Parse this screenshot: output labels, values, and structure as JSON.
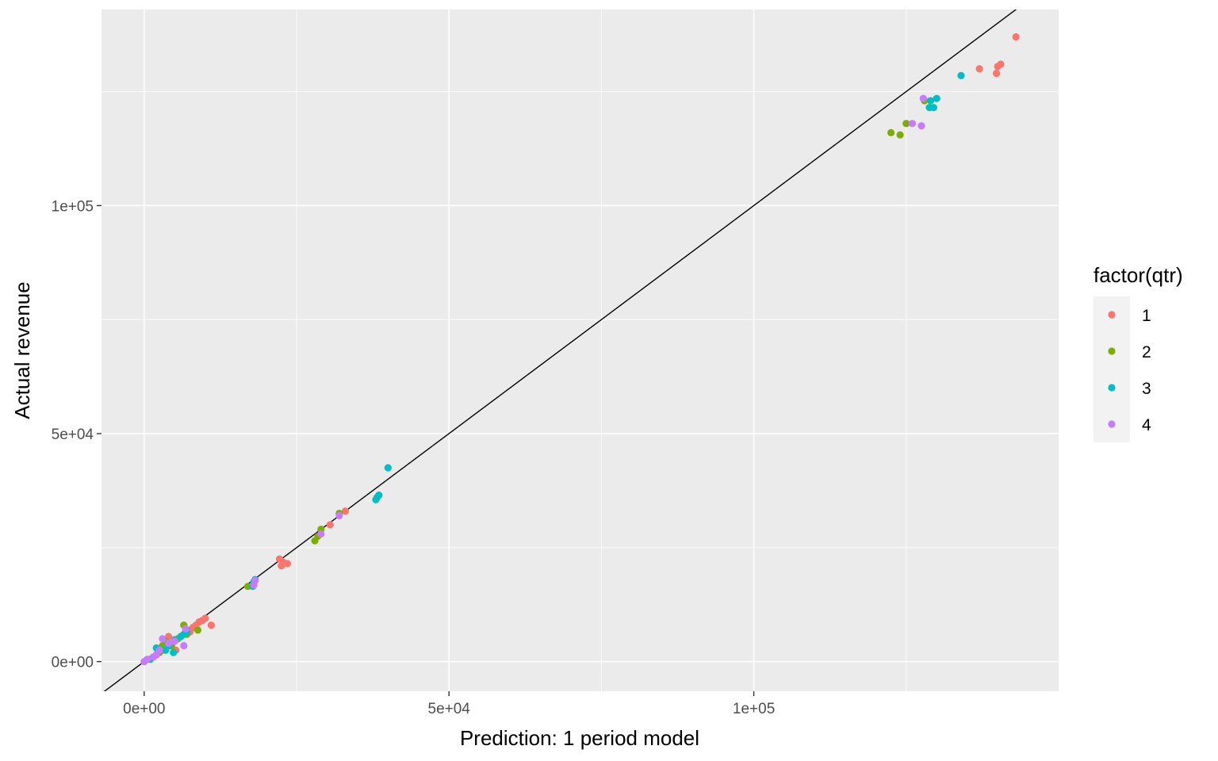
{
  "chart_data": {
    "type": "scatter",
    "title": "",
    "xlabel": "Prediction: 1 period model",
    "ylabel": "Actual revenue",
    "xlim": [
      -7000,
      150000
    ],
    "ylim": [
      -6500,
      143000
    ],
    "x_ticks": [
      {
        "value": 0,
        "label": "0e+00"
      },
      {
        "value": 50000,
        "label": "5e+04"
      },
      {
        "value": 100000,
        "label": "1e+05"
      }
    ],
    "y_ticks": [
      {
        "value": 0,
        "label": "0e+00"
      },
      {
        "value": 50000,
        "label": "5e+04"
      },
      {
        "value": 100000,
        "label": "1e+05"
      }
    ],
    "grid": true,
    "background": "#EBEBEB",
    "reference_line": {
      "intercept": 0,
      "slope": 1,
      "color": "#000000"
    },
    "legend": {
      "title": "factor(qtr)",
      "position": "right"
    },
    "series": [
      {
        "name": "1",
        "color": "#F8766D",
        "points": [
          [
            143000,
            137000
          ],
          [
            140500,
            131000
          ],
          [
            140000,
            130500
          ],
          [
            139800,
            129000
          ],
          [
            137000,
            130000
          ],
          [
            33000,
            33000
          ],
          [
            30500,
            30000
          ],
          [
            23500,
            21500
          ],
          [
            22800,
            21800
          ],
          [
            22500,
            21000
          ],
          [
            22200,
            22500
          ],
          [
            11000,
            8000
          ],
          [
            10000,
            9500
          ],
          [
            9500,
            9000
          ],
          [
            9000,
            8700
          ],
          [
            8500,
            8000
          ],
          [
            8000,
            7500
          ],
          [
            7500,
            6500
          ],
          [
            6000,
            5500
          ],
          [
            5500,
            5000
          ],
          [
            5000,
            4500
          ],
          [
            4500,
            4000
          ],
          [
            4000,
            3500
          ],
          [
            3500,
            3000
          ],
          [
            3000,
            2500
          ],
          [
            2500,
            2000
          ],
          [
            5200,
            2500
          ],
          [
            4000,
            5500
          ],
          [
            1500,
            1000
          ]
        ]
      },
      {
        "name": "2",
        "color": "#7CAE00",
        "points": [
          [
            128000,
            123000
          ],
          [
            125000,
            118000
          ],
          [
            124000,
            115500
          ],
          [
            122500,
            116000
          ],
          [
            32000,
            32500
          ],
          [
            29000,
            29000
          ],
          [
            28500,
            27500
          ],
          [
            28000,
            26500
          ],
          [
            18000,
            17500
          ],
          [
            17000,
            16500
          ],
          [
            6500,
            8000
          ],
          [
            8800,
            6900
          ],
          [
            7000,
            6000
          ],
          [
            5500,
            5000
          ],
          [
            4500,
            3500
          ],
          [
            3500,
            4500
          ],
          [
            3000,
            3500
          ],
          [
            2500,
            2000
          ],
          [
            2000,
            1500
          ]
        ]
      },
      {
        "name": "3",
        "color": "#00BFC4",
        "points": [
          [
            40000,
            42500
          ],
          [
            38500,
            36500
          ],
          [
            38200,
            36000
          ],
          [
            38000,
            35500
          ],
          [
            18200,
            18000
          ],
          [
            18000,
            17500
          ],
          [
            17800,
            16500
          ],
          [
            134000,
            128500
          ],
          [
            130000,
            123500
          ],
          [
            129500,
            121500
          ],
          [
            128800,
            121500
          ],
          [
            129000,
            123000
          ],
          [
            6000,
            5500
          ],
          [
            5000,
            4800
          ],
          [
            4800,
            2000
          ],
          [
            4000,
            3500
          ],
          [
            3500,
            2500
          ],
          [
            2000,
            3000
          ],
          [
            7000,
            6500
          ],
          [
            6500,
            6000
          ],
          [
            1000,
            500
          ]
        ]
      },
      {
        "name": "4",
        "color": "#C77CFF",
        "points": [
          [
            127800,
            123500
          ],
          [
            126000,
            118000
          ],
          [
            127500,
            117500
          ],
          [
            32000,
            32000
          ],
          [
            29000,
            28000
          ],
          [
            18200,
            17800
          ],
          [
            18000,
            16800
          ],
          [
            6800,
            7200
          ],
          [
            6500,
            3500
          ],
          [
            3000,
            5000
          ],
          [
            4000,
            4000
          ],
          [
            5000,
            4500
          ],
          [
            2500,
            2500
          ],
          [
            2000,
            1500
          ],
          [
            1500,
            1000
          ],
          [
            500,
            500
          ],
          [
            0,
            0
          ]
        ]
      }
    ]
  }
}
